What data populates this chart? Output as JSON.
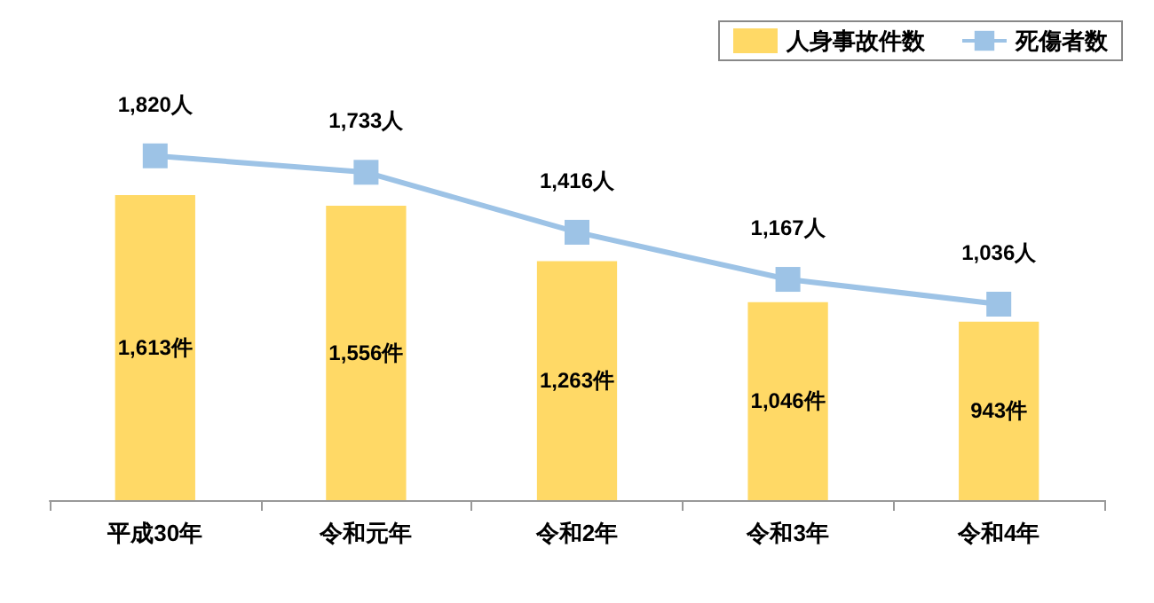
{
  "chart_data": {
    "type": "bar",
    "categories": [
      "平成30年",
      "令和元年",
      "令和2年",
      "令和3年",
      "令和4年"
    ],
    "series": [
      {
        "name": "人身事故件数",
        "color": "#ffd966",
        "values": [
          1613,
          1556,
          1263,
          1046,
          943
        ],
        "value_labels": [
          "1,613件",
          "1,556件",
          "1,263件",
          "1,046件",
          "943件"
        ]
      },
      {
        "name": "死傷者数",
        "type": "line",
        "color": "#9dc3e6",
        "values": [
          1820,
          1733,
          1416,
          1167,
          1036
        ],
        "value_labels": [
          "1,820人",
          "1,733人",
          "1,416人",
          "1,167人",
          "1,036人"
        ]
      }
    ],
    "legend": "top right",
    "marker": "square"
  }
}
